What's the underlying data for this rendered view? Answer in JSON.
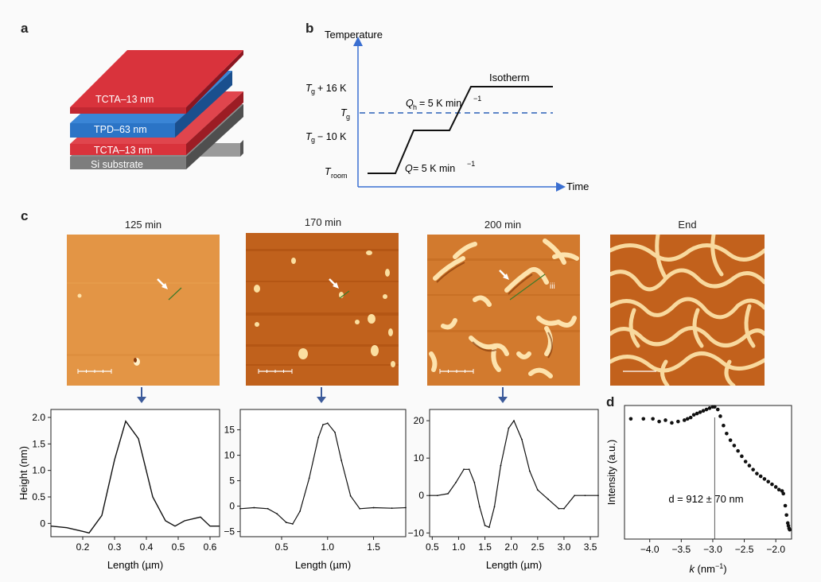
{
  "panels": {
    "a": "a",
    "b": "b",
    "c": "c",
    "d": "d"
  },
  "panel_a": {
    "layers": [
      {
        "label": "TCTA–13 nm",
        "color": "#d9333c"
      },
      {
        "label": "TPD–63 nm",
        "color": "#2b74c6"
      },
      {
        "label": "TCTA–13 nm",
        "color": "#d9333c"
      },
      {
        "label": "Si substrate",
        "color": "#7a7a7a"
      }
    ]
  },
  "panel_b": {
    "y_axis_label": "Temperature",
    "x_axis_label": "Time",
    "ticks": {
      "tg_plus": "+ 16 K",
      "tg_label": "T",
      "tg_sub": "g",
      "tg_minus": "− 10 K",
      "troom_label": "T",
      "troom_sub": "room"
    },
    "isotherm_label": "Isotherm",
    "qh_label": "= 5 K min",
    "q_label": "= 5 K min",
    "exponent": "−1",
    "Q": "Q",
    "h": "h"
  },
  "panel_c": {
    "titles": [
      "125 min",
      "170 min",
      "200 min",
      "End"
    ],
    "marker_iii": "iii",
    "afm_colors": {
      "light": "#f3b45a",
      "mid": "#d97a2a",
      "dark": "#a84a0c"
    }
  },
  "chart_data": [
    {
      "type": "line",
      "title": "125 min",
      "xlabel": "Length (µm)",
      "ylabel": "Height (nm)",
      "xlim": [
        0.1,
        0.63
      ],
      "ylim": [
        -0.25,
        2.15
      ],
      "xticks": [
        "0.2",
        "0.3",
        "0.4",
        "0.5",
        "0.6"
      ],
      "yticks": [
        "0",
        "0.5",
        "1.0",
        "1.5",
        "2.0"
      ],
      "x": [
        0.1,
        0.15,
        0.2,
        0.22,
        0.26,
        0.3,
        0.335,
        0.375,
        0.42,
        0.46,
        0.49,
        0.52,
        0.57,
        0.6,
        0.63
      ],
      "y": [
        -0.05,
        -0.08,
        -0.15,
        -0.18,
        0.15,
        1.2,
        1.93,
        1.6,
        0.5,
        0.05,
        -0.05,
        0.05,
        0.12,
        -0.05,
        -0.05
      ]
    },
    {
      "type": "line",
      "title": "170 min",
      "xlabel": "Length (µm)",
      "ylabel": "",
      "xlim": [
        0.05,
        1.85
      ],
      "ylim": [
        -6,
        19
      ],
      "xticks": [
        "0.5",
        "1.0",
        "1.5"
      ],
      "yticks": [
        "−5",
        "0",
        "5",
        "10",
        "15"
      ],
      "x": [
        0.05,
        0.2,
        0.35,
        0.45,
        0.55,
        0.62,
        0.7,
        0.8,
        0.9,
        0.95,
        1.0,
        1.08,
        1.15,
        1.25,
        1.35,
        1.5,
        1.7,
        1.85
      ],
      "y": [
        -0.5,
        -0.3,
        -0.5,
        -1.5,
        -3.2,
        -3.5,
        -1.0,
        5.5,
        13.5,
        16.0,
        16.3,
        14.5,
        9.0,
        2.0,
        -0.5,
        -0.3,
        -0.4,
        -0.3
      ]
    },
    {
      "type": "line",
      "title": "200 min",
      "xlabel": "Length (µm)",
      "ylabel": "",
      "xlim": [
        0.45,
        3.65
      ],
      "ylim": [
        -11,
        23
      ],
      "xticks": [
        "0.5",
        "1.0",
        "1.5",
        "2.0",
        "2.5",
        "3.0",
        "3.5"
      ],
      "yticks": [
        "−10",
        "0",
        "10",
        "20"
      ],
      "x": [
        0.45,
        0.6,
        0.8,
        0.95,
        1.1,
        1.2,
        1.3,
        1.4,
        1.5,
        1.58,
        1.68,
        1.8,
        1.95,
        2.05,
        2.2,
        2.35,
        2.5,
        2.7,
        2.9,
        3.0,
        3.2,
        3.4,
        3.65
      ],
      "y": [
        0,
        0,
        0.5,
        3.5,
        7.0,
        7.0,
        3.5,
        -3.0,
        -8.0,
        -8.5,
        -3.0,
        8.0,
        18.0,
        20.0,
        15.0,
        6.5,
        1.5,
        -1.0,
        -3.5,
        -3.5,
        0,
        0,
        0
      ]
    },
    {
      "type": "scatter",
      "title": "",
      "xlabel": "k (nm−1)",
      "ylabel": "Intensity (a.u.)",
      "xlim": [
        -4.4,
        -1.75
      ],
      "ylim": [
        0,
        1
      ],
      "xticks": [
        "−4.0",
        "−3.5",
        "−3.0",
        "−2.5",
        "−2.0"
      ],
      "annotation": "d = 912 ± 70 nm",
      "peak_x": -2.97,
      "x": [
        -4.3,
        -4.1,
        -3.95,
        -3.85,
        -3.75,
        -3.65,
        -3.55,
        -3.45,
        -3.4,
        -3.35,
        -3.3,
        -3.25,
        -3.2,
        -3.15,
        -3.1,
        -3.05,
        -3.0,
        -2.97,
        -2.92,
        -2.88,
        -2.83,
        -2.78,
        -2.72,
        -2.66,
        -2.6,
        -2.54,
        -2.48,
        -2.42,
        -2.36,
        -2.3,
        -2.24,
        -2.18,
        -2.12,
        -2.06,
        -2.0,
        -1.95,
        -1.9,
        -1.88,
        -1.85,
        -1.83,
        -1.81,
        -1.8,
        -1.79,
        -1.78
      ],
      "y": [
        0.9,
        0.9,
        0.9,
        0.88,
        0.89,
        0.87,
        0.88,
        0.89,
        0.9,
        0.91,
        0.93,
        0.94,
        0.95,
        0.96,
        0.97,
        0.98,
        0.99,
        0.99,
        0.97,
        0.92,
        0.85,
        0.79,
        0.74,
        0.7,
        0.66,
        0.62,
        0.58,
        0.55,
        0.52,
        0.49,
        0.47,
        0.45,
        0.43,
        0.41,
        0.39,
        0.37,
        0.36,
        0.34,
        0.25,
        0.18,
        0.12,
        0.1,
        0.08,
        0.07
      ]
    }
  ]
}
